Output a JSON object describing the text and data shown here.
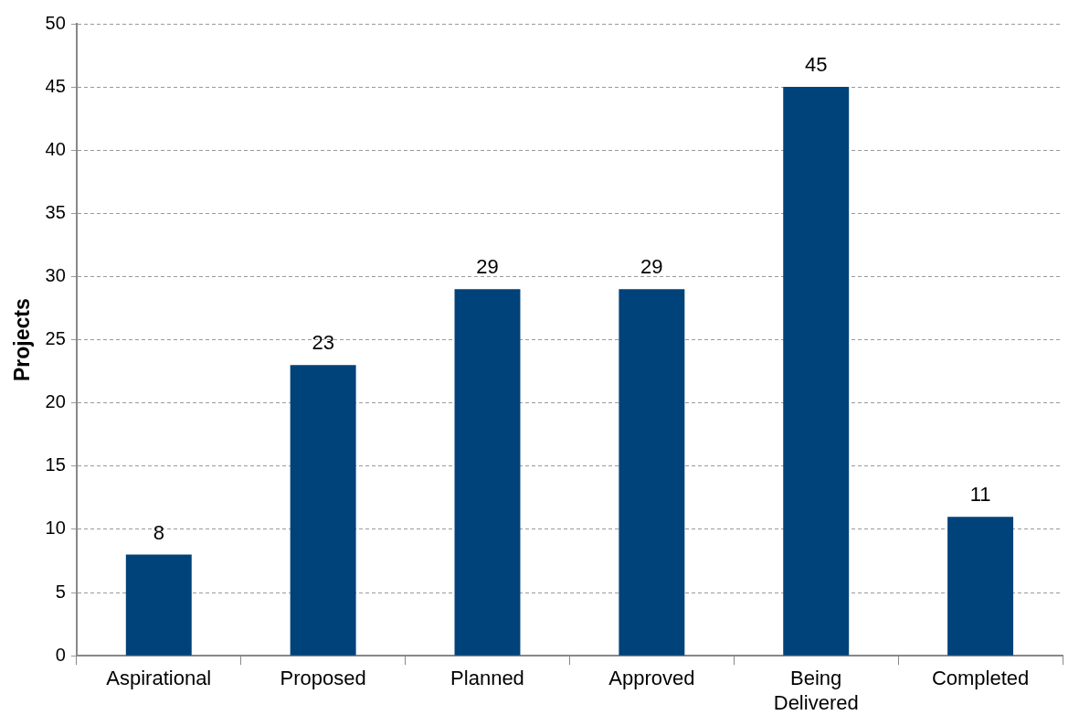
{
  "chart_data": {
    "type": "bar",
    "ylabel": "Projects",
    "categories": [
      "Aspirational",
      "Proposed",
      "Planned",
      "Approved",
      "Being Delivered",
      "Completed"
    ],
    "values": [
      8,
      23,
      29,
      29,
      45,
      11
    ],
    "color": "#00427a",
    "ylim": [
      0,
      50
    ],
    "yticks": [
      0,
      5,
      10,
      15,
      20,
      25,
      30,
      35,
      40,
      45,
      50
    ],
    "grid": "y",
    "data_labels": true,
    "legend": false
  }
}
